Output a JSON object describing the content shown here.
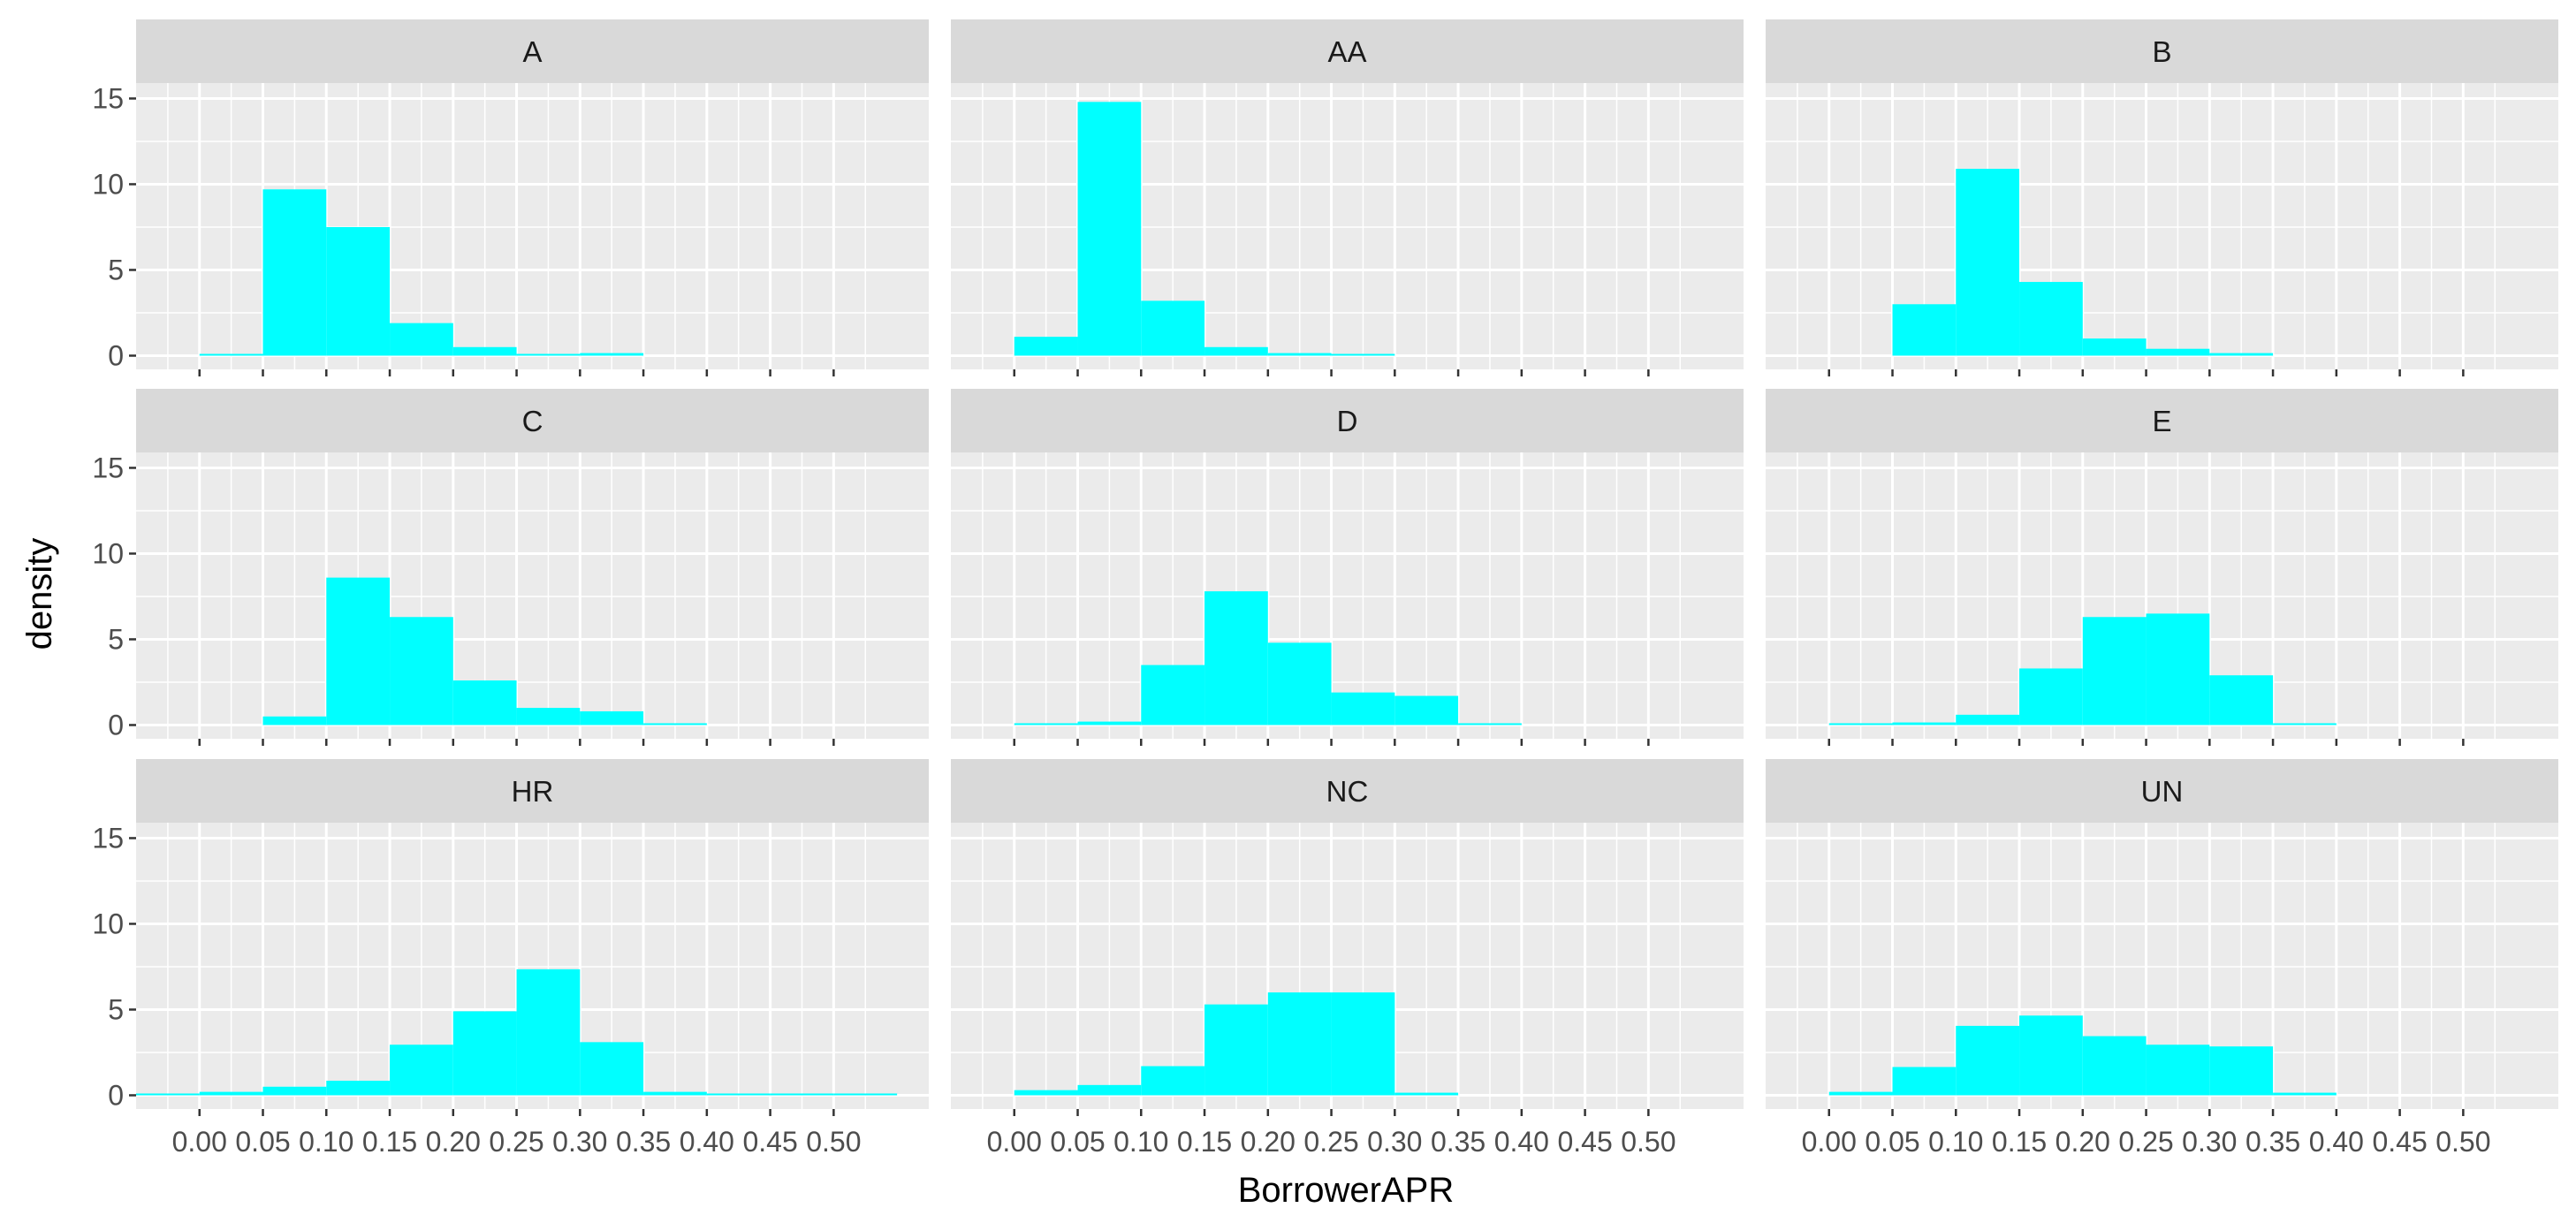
{
  "chart_data": {
    "type": "bar",
    "subtype": "faceted-histogram",
    "xlabel": "BorrowerAPR",
    "ylabel": "density",
    "xlim": [
      -0.05,
      0.575
    ],
    "ylim": [
      -0.8,
      15.9
    ],
    "x_ticks": [
      0.0,
      0.05,
      0.1,
      0.15,
      0.2,
      0.25,
      0.3,
      0.35,
      0.4,
      0.45,
      0.5
    ],
    "x_tick_labels": [
      "0.00",
      "0.05",
      "0.10",
      "0.15",
      "0.20",
      "0.25",
      "0.30",
      "0.35",
      "0.40",
      "0.45",
      "0.50"
    ],
    "y_ticks": [
      0,
      5,
      10,
      15
    ],
    "y_tick_labels": [
      "0",
      "5",
      "10",
      "15"
    ],
    "bin_width": 0.05,
    "bin_centers": [
      -0.025,
      0.025,
      0.075,
      0.125,
      0.175,
      0.225,
      0.275,
      0.325,
      0.375,
      0.425,
      0.475,
      0.525
    ],
    "bar_color": "#00FFFF",
    "panel_background": "#EBEBEB",
    "strip_background": "#D9D9D9",
    "grid": true,
    "facets": [
      {
        "label": "A",
        "values": [
          0,
          0.05,
          9.7,
          7.5,
          1.9,
          0.5,
          0.1,
          0.15,
          0,
          0,
          0,
          0
        ]
      },
      {
        "label": "AA",
        "values": [
          0,
          1.1,
          14.8,
          3.2,
          0.5,
          0.15,
          0.05,
          0,
          0,
          0,
          0,
          0
        ]
      },
      {
        "label": "B",
        "values": [
          0,
          0,
          3.0,
          10.9,
          4.3,
          1.0,
          0.4,
          0.15,
          0,
          0,
          0,
          0
        ]
      },
      {
        "label": "C",
        "values": [
          0,
          0,
          0.5,
          8.6,
          6.3,
          2.6,
          1.0,
          0.8,
          0.05,
          0,
          0,
          0
        ]
      },
      {
        "label": "D",
        "values": [
          0,
          0.05,
          0.2,
          3.5,
          7.8,
          4.8,
          1.9,
          1.7,
          0.05,
          0,
          0,
          0
        ]
      },
      {
        "label": "E",
        "values": [
          0,
          0.05,
          0.15,
          0.6,
          3.3,
          6.3,
          6.5,
          2.9,
          0.1,
          0,
          0,
          0
        ]
      },
      {
        "label": "HR",
        "values": [
          0.05,
          0.2,
          0.5,
          0.85,
          2.95,
          4.9,
          7.35,
          3.1,
          0.2,
          0.05,
          0.05,
          0.05
        ]
      },
      {
        "label": "NC",
        "values": [
          0,
          0.3,
          0.6,
          1.7,
          5.3,
          6.0,
          6.0,
          0.15,
          0,
          0,
          0,
          0
        ]
      },
      {
        "label": "UN",
        "values": [
          0,
          0.2,
          1.65,
          4.05,
          4.65,
          3.45,
          2.95,
          2.85,
          0.15,
          0,
          0,
          0
        ]
      }
    ]
  }
}
